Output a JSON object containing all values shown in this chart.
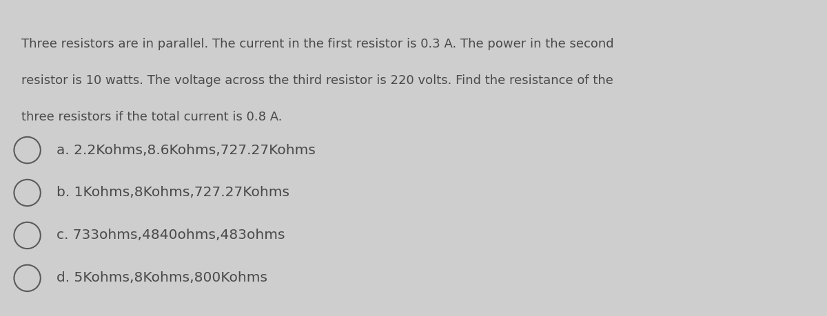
{
  "background_color": "#cecece",
  "question_text_lines": [
    "Three resistors are in parallel. The current in the first resistor is 0.3 A. The power in the second",
    "resistor is 10 watts. The voltage across the third resistor is 220 volts. Find the resistance of the",
    "three resistors if the total current is 0.8 A."
  ],
  "options": [
    "a. 2.2Kohms,8.6Kohms,727.27Kohms",
    "b. 1Kohms,8Kohms,727.27Kohms",
    "c. 733ohms,4840ohms,483ohms",
    "d. 5Kohms,8Kohms,800Kohms"
  ],
  "text_color": "#4a4a4a",
  "question_fontsize": 13.0,
  "option_fontsize": 14.5,
  "circle_color": "#5a5a5a",
  "circle_linewidth": 1.5
}
